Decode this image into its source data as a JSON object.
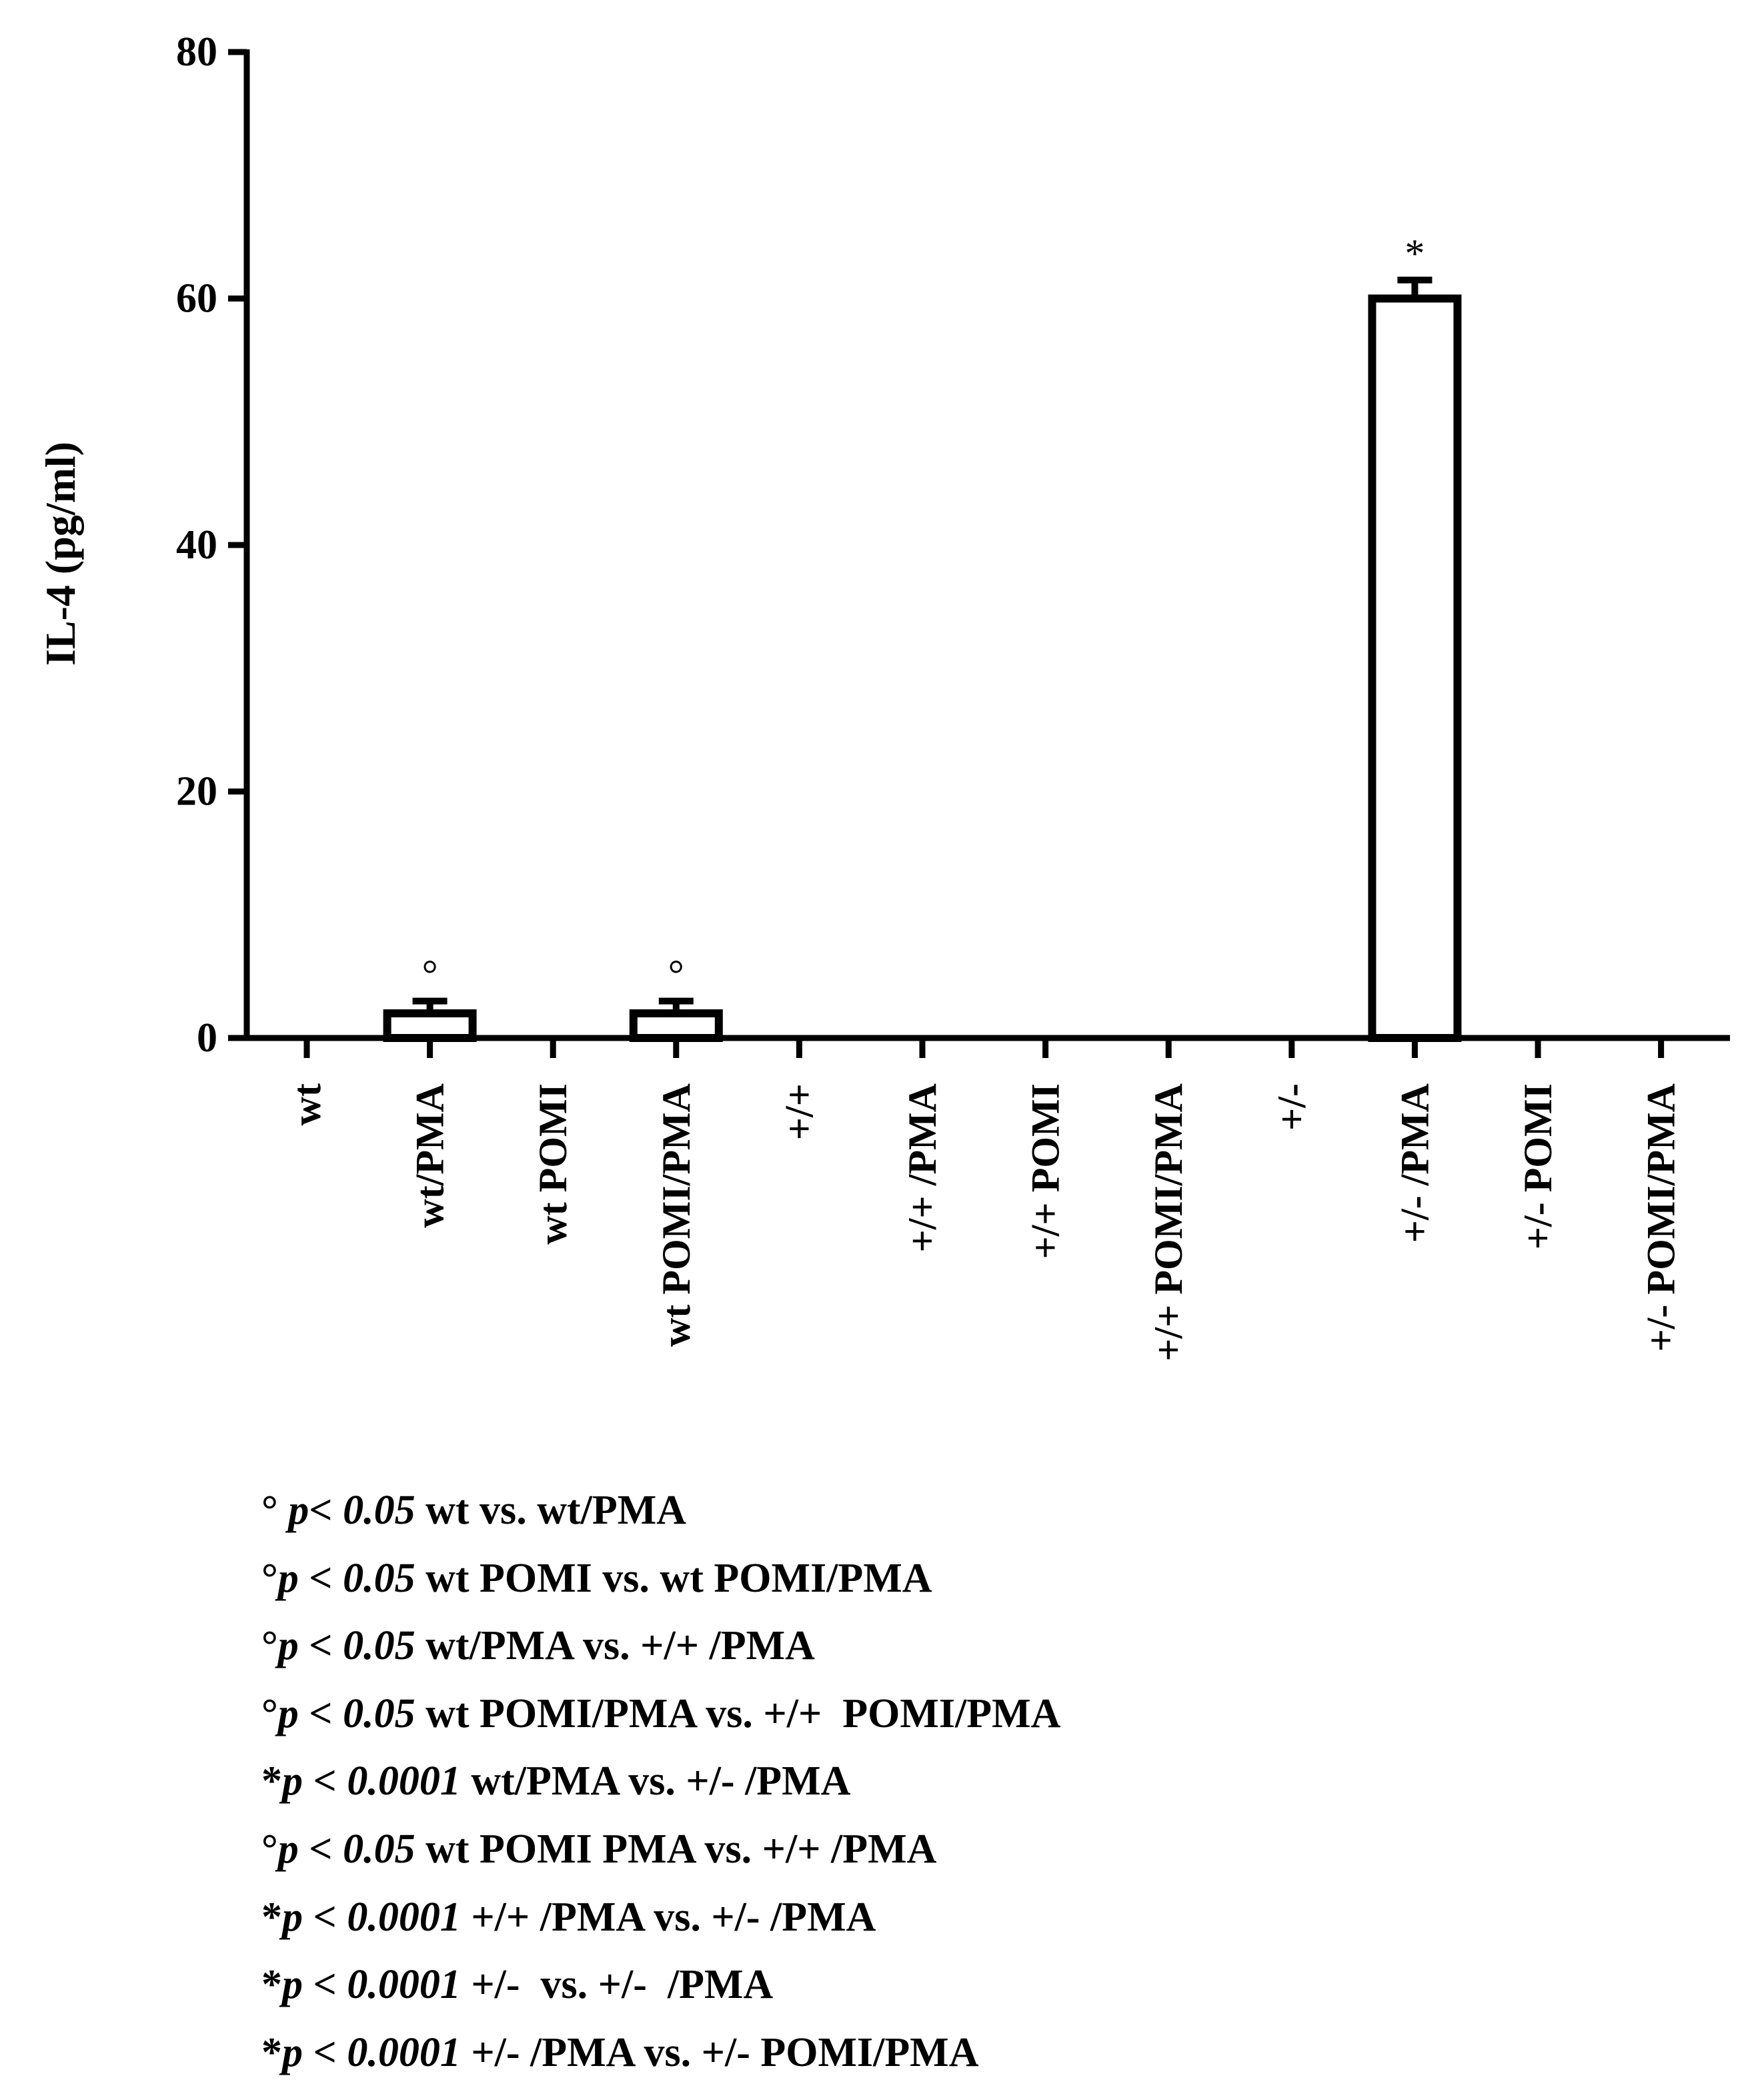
{
  "chart_data": {
    "type": "bar",
    "title": "",
    "xlabel": "",
    "ylabel": "IL-4 (pg/ml)",
    "ylim": [
      0,
      80
    ],
    "yticks": [
      "0",
      "20",
      "40",
      "60",
      "80"
    ],
    "categories": [
      "wt",
      "wt/PMA",
      "wt POMI",
      "wt POMI/PMA",
      "+/+",
      "+/+ /PMA",
      "+/+ POMI",
      "+/+ POMI/PMA",
      "+/-",
      "+/- /PMA",
      "+/- POMI",
      "+/- POMI/PMA"
    ],
    "values": [
      0,
      2,
      0,
      2,
      0,
      0,
      0,
      0,
      0,
      60,
      0,
      0
    ],
    "errors": [
      0,
      1,
      0,
      1,
      0,
      0,
      0,
      0,
      0,
      1.5,
      0,
      0
    ],
    "markers": [
      "",
      "°",
      "",
      "°",
      "",
      "",
      "",
      "",
      "",
      "*",
      "",
      ""
    ],
    "grid": false,
    "bar_fill": "#ffffff",
    "bar_edge": "#000000"
  },
  "footnotes": [
    {
      "sym": "° ",
      "p": "p< 0.05",
      "text": " wt vs. wt/PMA"
    },
    {
      "sym": "°",
      "p": "p < 0.05",
      "text": " wt POMI vs. wt POMI/PMA"
    },
    {
      "sym": "°",
      "p": "p < 0.05",
      "text": " wt/PMA vs. +/+ /PMA"
    },
    {
      "sym": "°",
      "p": "p < 0.05",
      "text": " wt POMI/PMA vs. +/+  POMI/PMA"
    },
    {
      "sym": "*",
      "p": "p < 0.0001",
      "text": " wt/PMA vs. +/- /PMA"
    },
    {
      "sym": "°",
      "p": "p < 0.05",
      "text": " wt POMI PMA vs. +/+ /PMA"
    },
    {
      "sym": "*",
      "p": "p < 0.0001",
      "text": " +/+ /PMA vs. +/- /PMA"
    },
    {
      "sym": "*",
      "p": "p < 0.0001",
      "text": " +/-  vs. +/-  /PMA"
    },
    {
      "sym": "*",
      "p": "p < 0.0001",
      "text": " +/- /PMA vs. +/- POMI/PMA"
    }
  ]
}
